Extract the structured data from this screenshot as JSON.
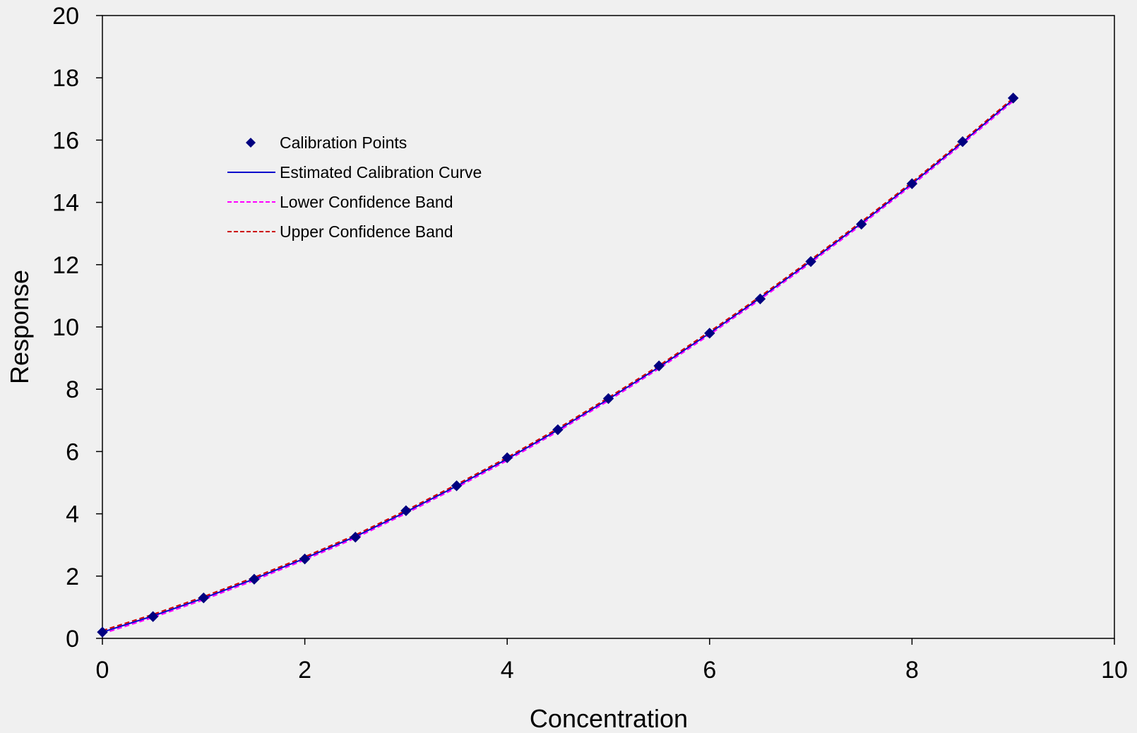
{
  "chart_data": {
    "type": "line",
    "xlabel": "Concentration",
    "ylabel": "Response",
    "xlim": [
      0,
      10
    ],
    "ylim": [
      0,
      20
    ],
    "x_ticks": [
      0,
      2,
      4,
      6,
      8,
      10
    ],
    "y_ticks": [
      0,
      2,
      4,
      6,
      8,
      10,
      12,
      14,
      16,
      18,
      20
    ],
    "grid": false,
    "legend_position": "top-left",
    "x": [
      0,
      0.5,
      1,
      1.5,
      2,
      2.5,
      3,
      3.5,
      4,
      4.5,
      5,
      5.5,
      6,
      6.5,
      7,
      7.5,
      8,
      8.5,
      9
    ],
    "series": [
      {
        "name": "Calibration Points",
        "kind": "scatter",
        "marker": "diamond",
        "color": "#000080",
        "values": [
          0.2,
          0.7,
          1.3,
          1.9,
          2.55,
          3.25,
          4.1,
          4.9,
          5.8,
          6.7,
          7.7,
          8.75,
          9.8,
          10.9,
          12.1,
          13.3,
          14.6,
          15.95,
          17.35
        ]
      },
      {
        "name": "Estimated Calibration Curve",
        "kind": "line",
        "dash": "solid",
        "color": "#0000cc",
        "values": [
          0.2,
          0.72,
          1.29,
          1.91,
          2.57,
          3.27,
          4.06,
          4.89,
          5.76,
          6.69,
          7.68,
          8.71,
          9.8,
          10.93,
          12.11,
          13.33,
          14.6,
          15.93,
          17.3
        ]
      },
      {
        "name": "Lower Confidence Band",
        "kind": "line",
        "dash": "dashed",
        "color": "#ff00ff",
        "values": [
          0.15,
          0.67,
          1.24,
          1.86,
          2.52,
          3.22,
          4.01,
          4.84,
          5.71,
          6.64,
          7.63,
          8.66,
          9.75,
          10.88,
          12.06,
          13.28,
          14.55,
          15.88,
          17.25
        ]
      },
      {
        "name": "Upper Confidence Band",
        "kind": "line",
        "dash": "dashed",
        "color": "#cc0000",
        "values": [
          0.25,
          0.77,
          1.34,
          1.96,
          2.62,
          3.32,
          4.11,
          4.94,
          5.81,
          6.74,
          7.73,
          8.76,
          9.85,
          10.98,
          12.16,
          13.38,
          14.65,
          15.98,
          17.35
        ]
      }
    ],
    "legend": [
      {
        "label": "Calibration Points",
        "symbol": "diamond",
        "color": "#000080"
      },
      {
        "label": "Estimated Calibration Curve",
        "symbol": "solid-line",
        "color": "#0000cc"
      },
      {
        "label": "Lower Confidence Band",
        "symbol": "dashed-line",
        "color": "#ff00ff"
      },
      {
        "label": "Upper Confidence Band",
        "symbol": "dashed-line",
        "color": "#cc0000"
      }
    ]
  }
}
